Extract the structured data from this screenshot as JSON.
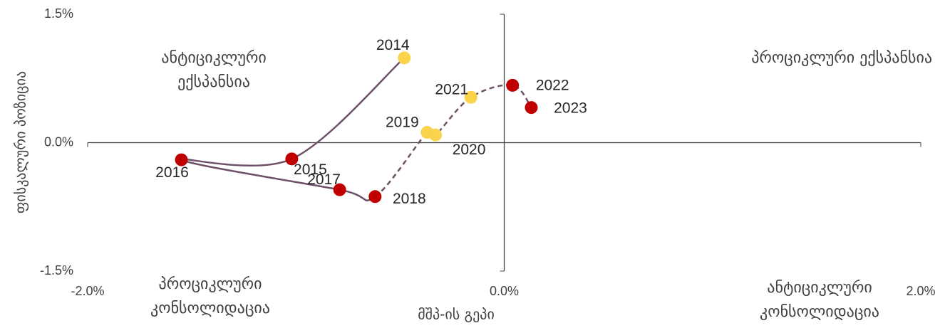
{
  "chart_data": {
    "type": "scatter",
    "ylabel": "ფისკალური პოზიცია",
    "xlabel": "მშპ-ის გეპი",
    "x": [
      -0.48,
      -1.02,
      -1.55,
      -0.79,
      -0.62,
      -0.37,
      -0.33,
      -0.16,
      0.04,
      0.13
    ],
    "y": [
      0.99,
      -0.19,
      -0.2,
      -0.55,
      -0.63,
      0.12,
      0.09,
      0.53,
      0.67,
      0.41
    ],
    "labels": [
      "2014",
      "2015",
      "2016",
      "2017",
      "2018",
      "2019",
      "2020",
      "2021",
      "2022",
      "2023"
    ],
    "point_colors": [
      "#f9d34a",
      "#c00000",
      "#c00000",
      "#c00000",
      "#c00000",
      "#f9d34a",
      "#f9d34a",
      "#f9d34a",
      "#c00000",
      "#c00000"
    ],
    "line_color": "#6e5068",
    "segment_styles": [
      "solid",
      "solid",
      "solid",
      "solid",
      "dashed",
      "dashed",
      "dashed",
      "dashed",
      "dashed"
    ],
    "xlim": [
      -2,
      2
    ],
    "ylim": [
      -1.5,
      1.5
    ],
    "xticks": [
      {
        "value": -2,
        "label": "-2.0%"
      },
      {
        "value": 0,
        "label": "0.0%"
      },
      {
        "value": 2,
        "label": "2.0%"
      }
    ],
    "yticks": [
      {
        "value": -1.5,
        "label": "-1.5%"
      },
      {
        "value": 0,
        "label": "0.0%"
      },
      {
        "value": 1.5,
        "label": "1.5%"
      }
    ],
    "annotations": [
      {
        "lines": [
          "ანტიციკლური",
          "ექსპანსია"
        ]
      },
      {
        "lines": [
          "პროციკლური ექსპანსია"
        ]
      },
      {
        "lines": [
          "პროციკლური",
          "კონსოლიდაცია"
        ]
      },
      {
        "lines": [
          "ანტიციკლური",
          "კონსოლიდაცია"
        ]
      }
    ]
  }
}
